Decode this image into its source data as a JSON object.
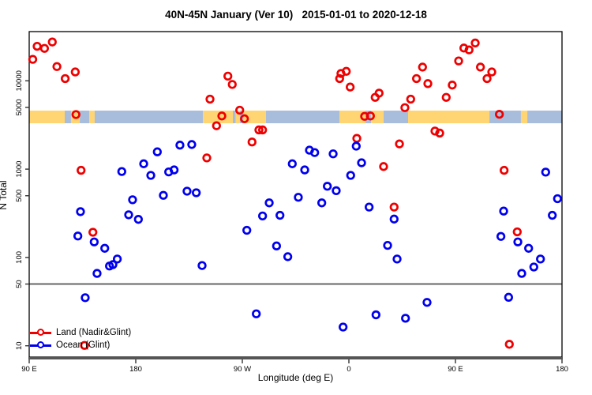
{
  "chart_data": {
    "type": "scatter",
    "title": "40N-45N January (Ver 10)   2015-01-01 to 2020-12-18",
    "xlabel": "Longitude (deg E)",
    "ylabel": "N Total",
    "x_axis": {
      "range_deg": [
        90,
        540
      ],
      "note": "longitude axis wraps: 90E to 180 to 90W to 0 to 90E to 180",
      "ticks": [
        {
          "v": 90,
          "label": "90 E"
        },
        {
          "v": 180,
          "label": "180"
        },
        {
          "v": 270,
          "label": "90 W"
        },
        {
          "v": 360,
          "label": "0"
        },
        {
          "v": 450,
          "label": "90 E"
        },
        {
          "v": 540,
          "label": "180"
        }
      ]
    },
    "y_axis": {
      "scale": "log",
      "range": [
        7.4,
        36000
      ],
      "ticks": [
        {
          "v": 10000,
          "label": "10000"
        },
        {
          "v": 5000,
          "label": "5000"
        },
        {
          "v": 1000,
          "label": "1000"
        },
        {
          "v": 500,
          "label": "500"
        },
        {
          "v": 100,
          "label": "100"
        },
        {
          "v": 50,
          "label": "50"
        },
        {
          "v": 10,
          "label": "10"
        }
      ]
    },
    "refline_y": 50,
    "refline_color": "#666666",
    "grid": false,
    "legend_position": "bottom-left",
    "band": {
      "description": "land/ocean map strip centered near N=4000",
      "n_range": [
        3300,
        4600
      ],
      "land_color": "#FFD573",
      "ocean_color": "#A8BDDC",
      "segments": [
        {
          "from": 90,
          "to": 120,
          "type": "land"
        },
        {
          "from": 120,
          "to": 125.3,
          "type": "ocean"
        },
        {
          "from": 125.3,
          "to": 132.7,
          "type": "land"
        },
        {
          "from": 132.7,
          "to": 140.7,
          "type": "ocean"
        },
        {
          "from": 140.7,
          "to": 145.3,
          "type": "land"
        },
        {
          "from": 145.3,
          "to": 236.7,
          "type": "ocean"
        },
        {
          "from": 236.7,
          "to": 262,
          "type": "land"
        },
        {
          "from": 262,
          "to": 264.5,
          "type": "ocean"
        },
        {
          "from": 264.5,
          "to": 268,
          "type": "land"
        },
        {
          "from": 268,
          "to": 271,
          "type": "ocean"
        },
        {
          "from": 271,
          "to": 290,
          "type": "land"
        },
        {
          "from": 290,
          "to": 352,
          "type": "ocean"
        },
        {
          "from": 352,
          "to": 374,
          "type": "land"
        },
        {
          "from": 374,
          "to": 378.7,
          "type": "ocean"
        },
        {
          "from": 378.7,
          "to": 389.3,
          "type": "land"
        },
        {
          "from": 389.3,
          "to": 410,
          "type": "ocean"
        },
        {
          "from": 410,
          "to": 478.7,
          "type": "land"
        },
        {
          "from": 478.7,
          "to": 505.3,
          "type": "ocean"
        },
        {
          "from": 505.3,
          "to": 510.7,
          "type": "land"
        },
        {
          "from": 510.7,
          "to": 540,
          "type": "ocean"
        }
      ]
    },
    "series": [
      {
        "name": "Land (Nadir&Glint)",
        "color": "#EE0000",
        "points": [
          [
            93,
            17500
          ],
          [
            96.7,
            24600
          ],
          [
            102.9,
            23300
          ],
          [
            109.5,
            27500
          ],
          [
            113.4,
            14500
          ],
          [
            120.4,
            10600
          ],
          [
            128.9,
            12600
          ],
          [
            129.5,
            4150
          ],
          [
            133.8,
            970
          ],
          [
            143.8,
            193
          ],
          [
            136.7,
            10.1
          ],
          [
            240,
            1340
          ],
          [
            242.7,
            6200
          ],
          [
            248.2,
            3100
          ],
          [
            252.7,
            4000
          ],
          [
            257.8,
            11300
          ],
          [
            261.5,
            9100
          ],
          [
            267.8,
            4650
          ],
          [
            271.8,
            3720
          ],
          [
            278.2,
            2030
          ],
          [
            284,
            2780
          ],
          [
            287.1,
            2780
          ],
          [
            352.2,
            10600
          ],
          [
            353.3,
            12100
          ],
          [
            357.8,
            12800
          ],
          [
            361.1,
            8500
          ],
          [
            366.7,
            2230
          ],
          [
            373.3,
            3960
          ],
          [
            378.2,
            4000
          ],
          [
            382.2,
            6500
          ],
          [
            385.5,
            7250
          ],
          [
            389.3,
            1070
          ],
          [
            398.2,
            372
          ],
          [
            402.7,
            1930
          ],
          [
            407.3,
            4970
          ],
          [
            412.2,
            6200
          ],
          [
            417.1,
            10600
          ],
          [
            422.2,
            14300
          ],
          [
            426.7,
            9300
          ],
          [
            432.7,
            2700
          ],
          [
            436.7,
            2560
          ],
          [
            442.2,
            6500
          ],
          [
            447.3,
            8950
          ],
          [
            452.7,
            16800
          ],
          [
            457.1,
            23500
          ],
          [
            461.5,
            22400
          ],
          [
            466.7,
            26800
          ],
          [
            471.1,
            14300
          ],
          [
            476.7,
            10600
          ],
          [
            480.7,
            12600
          ],
          [
            487.1,
            4180
          ],
          [
            491.1,
            970
          ],
          [
            495.5,
            10.4
          ],
          [
            502.2,
            195
          ]
        ]
      },
      {
        "name": "Ocean (Glint)",
        "color": "#0000EE",
        "points": [
          [
            131.1,
            175
          ],
          [
            133.3,
            330
          ],
          [
            137.3,
            35
          ],
          [
            144.9,
            150
          ],
          [
            147.3,
            66
          ],
          [
            153.8,
            127
          ],
          [
            157.8,
            80
          ],
          [
            160.7,
            83
          ],
          [
            164.4,
            96
          ],
          [
            168.2,
            940
          ],
          [
            174,
            304
          ],
          [
            177.3,
            450
          ],
          [
            182.2,
            270
          ],
          [
            186.7,
            1150
          ],
          [
            192.7,
            850
          ],
          [
            198.2,
            1570
          ],
          [
            203.3,
            505
          ],
          [
            207.8,
            930
          ],
          [
            212.4,
            980
          ],
          [
            217.3,
            1870
          ],
          [
            223.3,
            563
          ],
          [
            227.3,
            1900
          ],
          [
            231.1,
            540
          ],
          [
            236,
            81
          ],
          [
            273.8,
            203
          ],
          [
            281.8,
            23
          ],
          [
            287.1,
            295
          ],
          [
            292.7,
            415
          ],
          [
            298.9,
            135
          ],
          [
            301.8,
            300
          ],
          [
            308.4,
            102
          ],
          [
            312.2,
            1150
          ],
          [
            317.3,
            480
          ],
          [
            322.7,
            980
          ],
          [
            326.7,
            1640
          ],
          [
            331.1,
            1540
          ],
          [
            337.1,
            415
          ],
          [
            341.8,
            640
          ],
          [
            346.7,
            1490
          ],
          [
            349.3,
            570
          ],
          [
            355.1,
            16.3
          ],
          [
            361.5,
            850
          ],
          [
            366.2,
            1820
          ],
          [
            370.7,
            1180
          ],
          [
            377.1,
            372
          ],
          [
            382.9,
            22.4
          ],
          [
            392.7,
            137
          ],
          [
            398.2,
            272
          ],
          [
            400.7,
            96
          ],
          [
            407.8,
            20.5
          ],
          [
            426,
            31
          ],
          [
            488.4,
            173
          ],
          [
            490.7,
            335
          ],
          [
            494.9,
            35.4
          ],
          [
            502.7,
            150
          ],
          [
            506,
            66
          ],
          [
            511.8,
            127
          ],
          [
            516.2,
            78
          ],
          [
            521.8,
            96
          ],
          [
            526.2,
            925
          ],
          [
            531.8,
            300
          ],
          [
            536.2,
            463
          ]
        ]
      }
    ]
  }
}
